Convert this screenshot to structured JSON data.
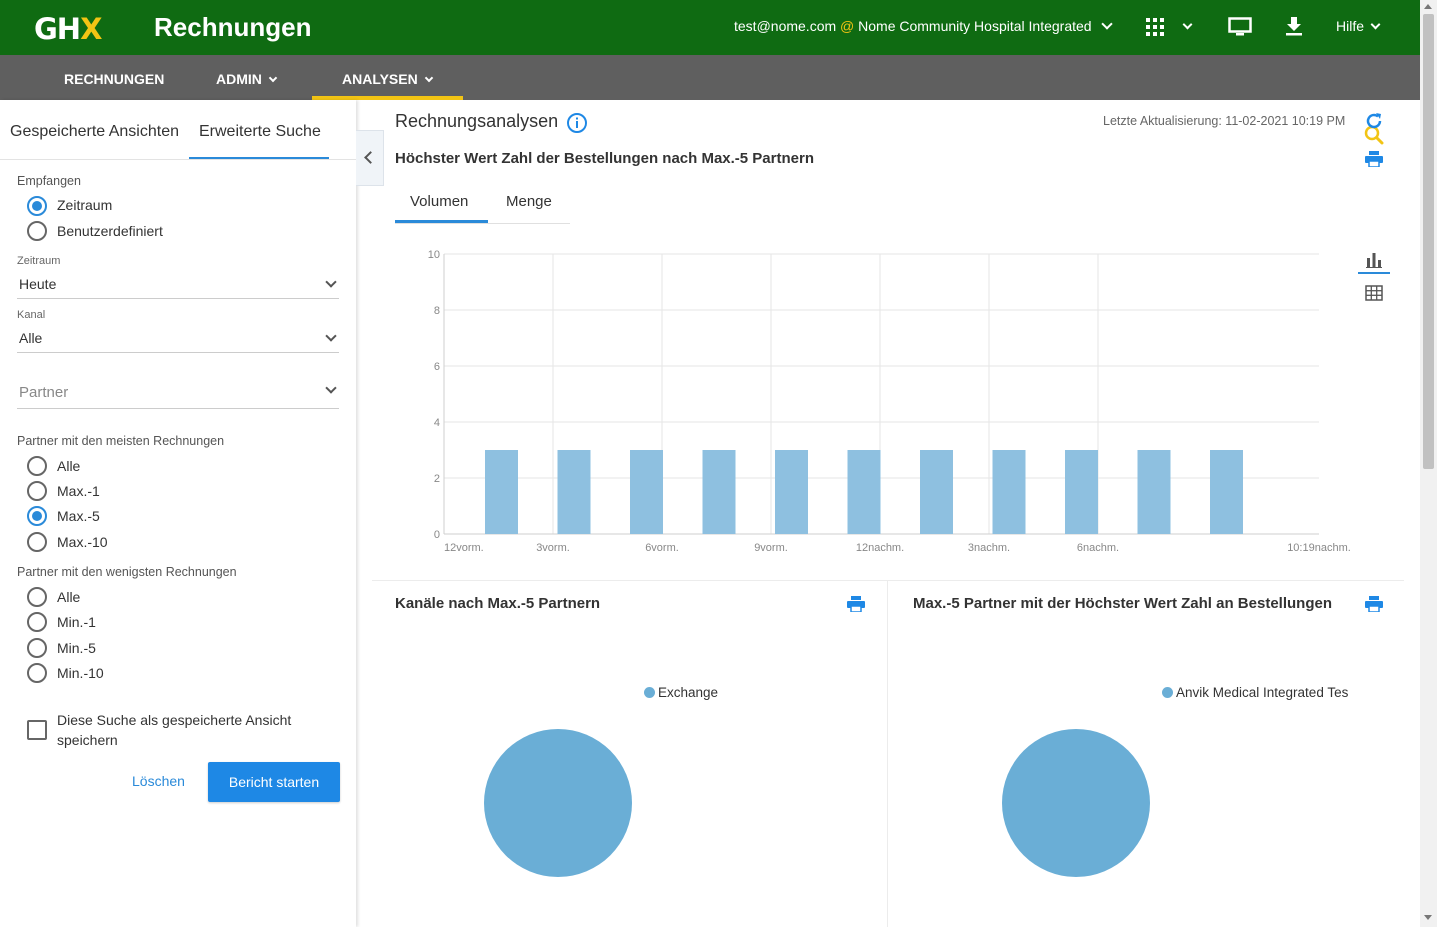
{
  "header": {
    "logo_main": "GH",
    "logo_accent": "X",
    "app_title": "Rechnungen",
    "account_user": "test@nome.com",
    "account_at": "@",
    "account_org": "Nome Community Hospital Integrated",
    "help_label": "Hilfe",
    "icons": [
      "apps-grid-icon",
      "monitor-icon",
      "download-icon"
    ]
  },
  "nav": {
    "items": [
      {
        "label": "RECHNUNGEN"
      },
      {
        "label": "ADMIN"
      },
      {
        "label": "ANALYSEN"
      }
    ],
    "active": "ANALYSEN"
  },
  "sidebar": {
    "tabs": [
      {
        "label": "Gespeicherte Ansichten"
      },
      {
        "label": "Erweiterte Suche"
      }
    ],
    "active_tab": "Erweiterte Suche",
    "received": {
      "label": "Empfangen",
      "options": [
        {
          "label": "Zeitraum",
          "selected": true
        },
        {
          "label": "Benutzerdefiniert",
          "selected": false
        }
      ]
    },
    "period": {
      "label": "Zeitraum",
      "value": "Heute"
    },
    "channel": {
      "label": "Kanal",
      "value": "Alle"
    },
    "partner": {
      "placeholder": "Partner"
    },
    "most_invoices": {
      "label": "Partner mit den meisten Rechnungen",
      "options": [
        {
          "label": "Alle",
          "selected": false
        },
        {
          "label": "Max.-1",
          "selected": false
        },
        {
          "label": "Max.-5",
          "selected": true
        },
        {
          "label": "Max.-10",
          "selected": false
        }
      ]
    },
    "least_invoices": {
      "label": "Partner mit den wenigsten Rechnungen",
      "options": [
        {
          "label": "Alle",
          "selected": false
        },
        {
          "label": "Min.-1",
          "selected": false
        },
        {
          "label": "Min.-5",
          "selected": false
        },
        {
          "label": "Min.-10",
          "selected": false
        }
      ]
    },
    "save_view": {
      "label": "Diese Suche als gespeicherte Ansicht speichern",
      "checked": false
    },
    "clear_label": "Löschen",
    "start_label": "Bericht starten"
  },
  "main": {
    "title": "Rechnungsanalysen",
    "last_update": "Letzte Aktualisierung: 11-02-2021 10:19 PM",
    "chart_title": "Höchster Wert Zahl der Bestellungen nach Max.-5 Partnern",
    "tabs": [
      {
        "label": "Volumen"
      },
      {
        "label": "Menge"
      }
    ],
    "active_tab": "Volumen",
    "view_toggle": [
      "bar-chart-icon",
      "table-grid-icon"
    ],
    "pie_left_title": "Kanäle nach Max.-5 Partnern",
    "pie_left_legend": "Exchange",
    "pie_right_title": "Max.-5 Partner mit der Höchster Wert Zahl an Bestellungen",
    "pie_right_legend": "Anvik Medical Integrated Tes"
  },
  "chart_data": [
    {
      "type": "bar",
      "title": "Höchster Wert Zahl der Bestellungen nach Max.-5 Partnern",
      "x_tick_labels": [
        "12vorm.",
        "3vorm.",
        "6vorm.",
        "9vorm.",
        "12nachm.",
        "3nachm.",
        "6nachm.",
        "10:19nachm."
      ],
      "y_tick_labels": [
        "0",
        "2",
        "4",
        "6",
        "8",
        "10"
      ],
      "ylim": [
        0,
        10
      ],
      "bar_count": 11,
      "values": [
        3,
        3,
        3,
        3,
        3,
        3,
        3,
        3,
        3,
        3,
        3
      ],
      "grid": true,
      "color": "#8ec0e0"
    },
    {
      "type": "pie",
      "title": "Kanäle nach Max.-5 Partnern",
      "labels": [
        "Exchange"
      ],
      "values": [
        100
      ],
      "color": "#6aaed6",
      "legend": "top-right"
    },
    {
      "type": "pie",
      "title": "Max.-5 Partner mit der Höchster Wert Zahl an Bestellungen",
      "labels": [
        "Anvik Medical Integrated Tes"
      ],
      "values": [
        100
      ],
      "color": "#6aaed6",
      "legend": "top-right"
    }
  ],
  "colors": {
    "header_green": "#0f6b12",
    "nav_gray": "#5f5f5f",
    "accent_yellow": "#f2c414",
    "primary_blue": "#1e88e5"
  }
}
